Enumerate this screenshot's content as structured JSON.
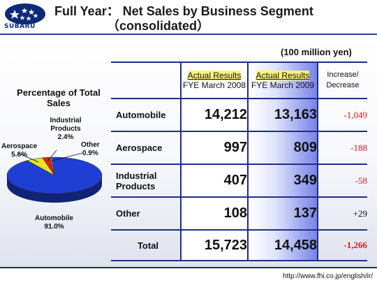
{
  "header": {
    "logo_text": "SUBARU",
    "title_line1": "Full Year： Net Sales by Business Segment",
    "title_line2": "（consolidated）"
  },
  "unit_note": "(100 million yen)",
  "pie": {
    "title": "Percentage of Total Sales",
    "slices": [
      {
        "label": "Automobile",
        "pct_label": "91.0%",
        "value": 91.0,
        "color": "#1f3fd4"
      },
      {
        "label": "Aerospace",
        "pct_label": "5.6%",
        "value": 5.6,
        "color": "#e6e622"
      },
      {
        "label": "Industrial Products",
        "pct_label": "2.4%",
        "value": 2.4,
        "color": "#e61c1c"
      },
      {
        "label": "Other",
        "pct_label": "0.9%",
        "value": 0.9,
        "color": "#7a7a7a"
      }
    ]
  },
  "table": {
    "col_2008_line1": "Actual Results",
    "col_2008_line2": "FYE March 2008",
    "col_2009_line1": "Actual Results",
    "col_2009_line2": "FYE March 2009",
    "col_inc_line1": "Increase/",
    "col_inc_line2": "Decrease",
    "rows": [
      {
        "label": "Automobile",
        "fy2008": "14,212",
        "fy2009": "13,163",
        "change": "-1,049"
      },
      {
        "label": "Aerospace",
        "fy2008": "997",
        "fy2009": "809",
        "change": "-188"
      },
      {
        "label_line1": "Industrial",
        "label_line2": "Products",
        "fy2008": "407",
        "fy2009": "349",
        "change": "-58"
      },
      {
        "label": "Other",
        "fy2008": "108",
        "fy2009": "137",
        "change": "+29"
      }
    ],
    "total": {
      "label": "Total",
      "fy2008": "15,723",
      "fy2009": "14,458",
      "change": "-1,266"
    }
  },
  "footer": {
    "url": "http://www.fhi.co.jp/english/ir/"
  }
}
